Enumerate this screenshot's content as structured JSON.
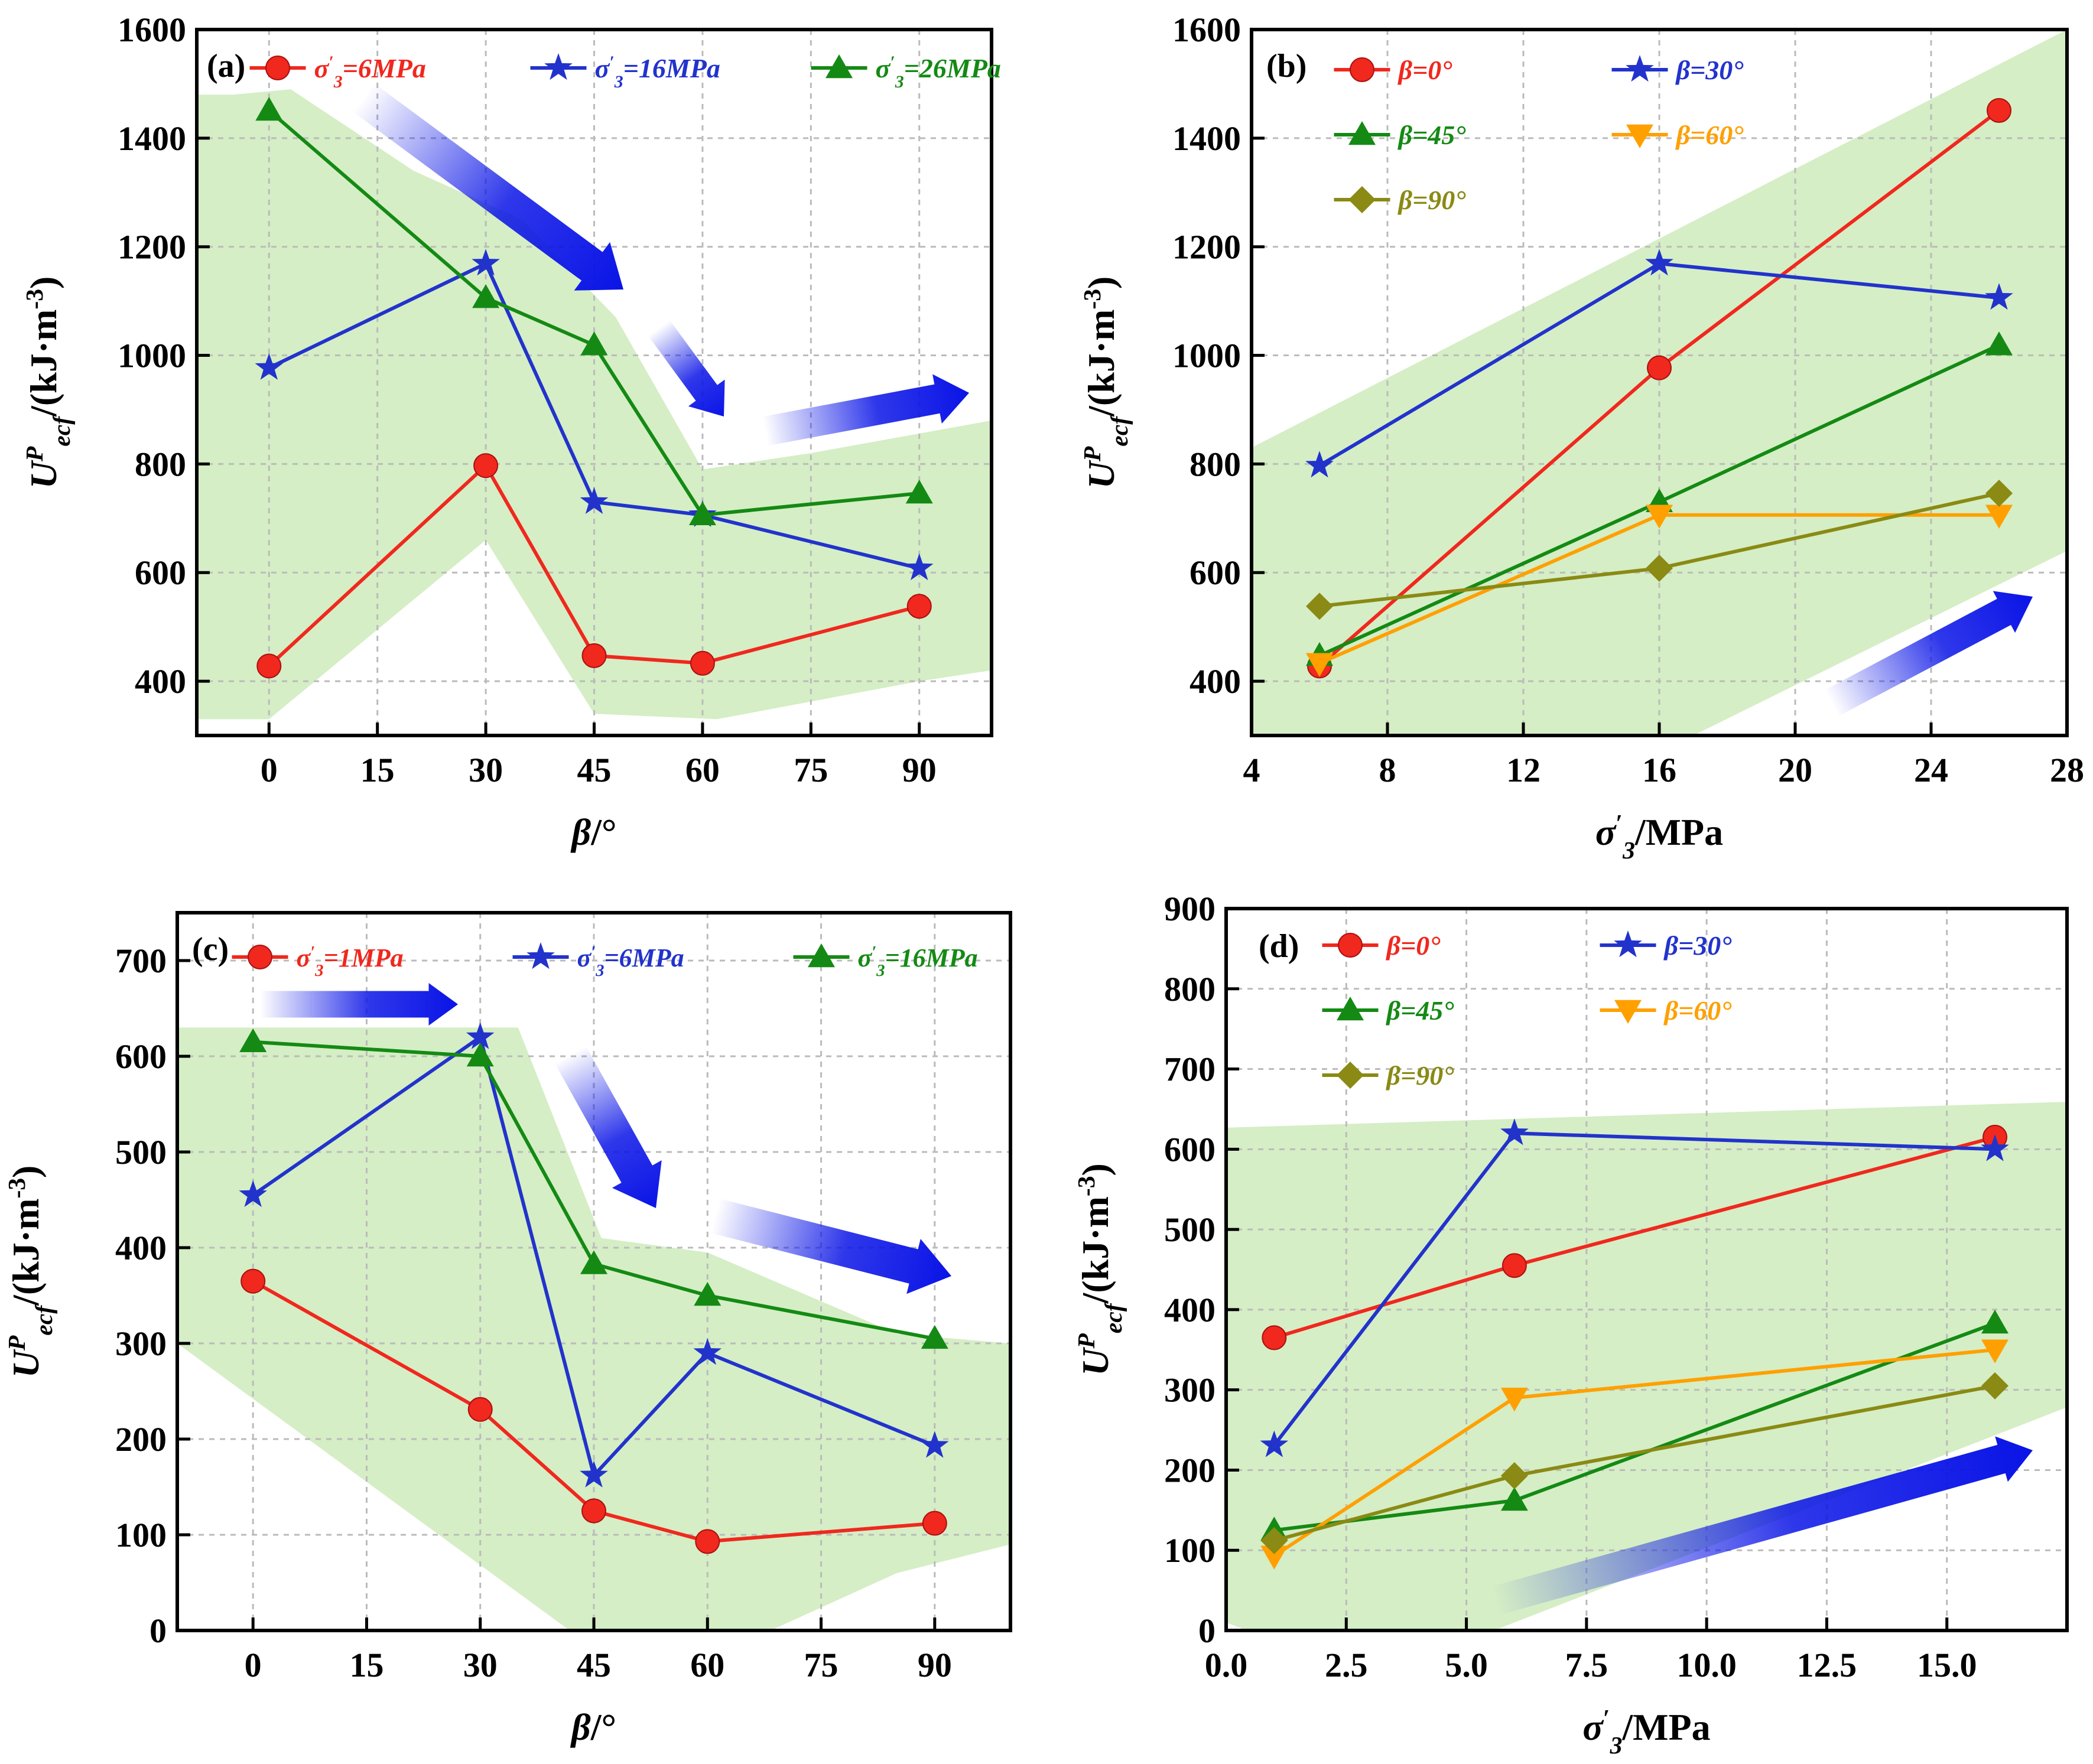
{
  "figure": {
    "panels": [
      {
        "id": "a",
        "tag": "(a)",
        "xlabel": {
          "main": "β",
          "unit": "/°"
        },
        "ylabel": {
          "main": "U",
          "sup": "P",
          "sub": "ecf",
          "unit": "/(kJ·m",
          "unitSup": "-3",
          "close": ")"
        }
      },
      {
        "id": "b",
        "tag": "(b)",
        "xlabel": {
          "main": "σ",
          "sub": "3",
          "prime": "′",
          "unit": "/MPa"
        },
        "ylabel": {
          "main": "U",
          "sup": "P",
          "sub": "ecf",
          "unit": "/(kJ·m",
          "unitSup": "-3",
          "close": ")"
        }
      },
      {
        "id": "c",
        "tag": "(c)",
        "xlabel": {
          "main": "β",
          "unit": "/°"
        },
        "ylabel": {
          "main": "U",
          "sup": "P",
          "sub": "ecf",
          "unit": "/(kJ·m",
          "unitSup": "-3",
          "close": ")"
        }
      },
      {
        "id": "d",
        "tag": "(d)",
        "xlabel": {
          "main": "σ",
          "sub": "3",
          "prime": "′",
          "unit": "/MPa"
        },
        "ylabel": {
          "main": "U",
          "sup": "P",
          "sub": "ecf",
          "unit": "/(kJ·m",
          "unitSup": "-3",
          "close": ")"
        }
      }
    ]
  },
  "colors": {
    "red": "#f0281e",
    "blue": "#2233cc",
    "green": "#148a14",
    "orange": "#ffa000",
    "olive": "#8a8a14",
    "band": "#d5eec5",
    "arrow": "#0a14e6",
    "grid": "#bbbbbb"
  },
  "chart_data": [
    {
      "panel": "a",
      "type": "line",
      "xlim": [
        -10,
        100
      ],
      "ylim": [
        300,
        1600
      ],
      "xticks": [
        "0",
        "15",
        "30",
        "45",
        "60",
        "75",
        "90"
      ],
      "yticks": [
        "400",
        "600",
        "800",
        "1000",
        "1200",
        "1400",
        "1600"
      ],
      "grid": true,
      "legend_position": "top",
      "series": [
        {
          "name": "σ′3=6MPa",
          "name_parts": [
            "σ",
            "′",
            "3",
            "=6MPa"
          ],
          "color": "red",
          "marker": "circle",
          "x": [
            0,
            30,
            45,
            60,
            90
          ],
          "y": [
            428,
            797,
            447,
            433,
            538
          ]
        },
        {
          "name": "σ′3=16MPa",
          "name_parts": [
            "σ",
            "′",
            "3",
            "=16MPa"
          ],
          "color": "blue",
          "marker": "star",
          "x": [
            0,
            30,
            45,
            60,
            90
          ],
          "y": [
            977,
            1169,
            730,
            706,
            608
          ]
        },
        {
          "name": "σ′3=26MPa",
          "name_parts": [
            "σ",
            "′",
            "3",
            "=26MPa"
          ],
          "color": "green",
          "marker": "triangle",
          "x": [
            0,
            30,
            45,
            60,
            90
          ],
          "y": [
            1451,
            1106,
            1019,
            706,
            746
          ]
        }
      ]
    },
    {
      "panel": "b",
      "type": "line",
      "xlim": [
        4,
        28
      ],
      "ylim": [
        300,
        1600
      ],
      "xticks": [
        "4",
        "8",
        "12",
        "16",
        "20",
        "24",
        "28"
      ],
      "yticks": [
        "400",
        "600",
        "800",
        "1000",
        "1200",
        "1400",
        "1600"
      ],
      "grid": true,
      "legend_position": "top-left",
      "series": [
        {
          "name": "β=0°",
          "name_parts": [
            "β",
            "=0°"
          ],
          "color": "red",
          "marker": "circle",
          "x": [
            6,
            16,
            26
          ],
          "y": [
            428,
            977,
            1451
          ]
        },
        {
          "name": "β=30°",
          "name_parts": [
            "β",
            "=30°"
          ],
          "color": "blue",
          "marker": "star",
          "x": [
            6,
            16,
            26
          ],
          "y": [
            797,
            1169,
            1106
          ]
        },
        {
          "name": "β=45°",
          "name_parts": [
            "β",
            "=45°"
          ],
          "color": "green",
          "marker": "triangle",
          "x": [
            6,
            16,
            26
          ],
          "y": [
            447,
            730,
            1019
          ]
        },
        {
          "name": "β=60°",
          "name_parts": [
            "β",
            "=60°"
          ],
          "color": "orange",
          "marker": "triangle-down",
          "x": [
            6,
            16,
            26
          ],
          "y": [
            433,
            706,
            706
          ]
        },
        {
          "name": "β=90°",
          "name_parts": [
            "β",
            "=90°"
          ],
          "color": "olive",
          "marker": "diamond",
          "x": [
            6,
            16,
            26
          ],
          "y": [
            538,
            608,
            746
          ]
        }
      ]
    },
    {
      "panel": "c",
      "type": "line",
      "xlim": [
        -10,
        100
      ],
      "ylim": [
        0,
        750
      ],
      "xticks": [
        "0",
        "15",
        "30",
        "45",
        "60",
        "75",
        "90"
      ],
      "yticks": [
        "0",
        "100",
        "200",
        "300",
        "400",
        "500",
        "600",
        "700"
      ],
      "grid": true,
      "legend_position": "top",
      "series": [
        {
          "name": "σ′3=1MPa",
          "name_parts": [
            "σ",
            "′",
            "3",
            "=1MPa"
          ],
          "color": "red",
          "marker": "circle",
          "x": [
            0,
            30,
            45,
            60,
            90
          ],
          "y": [
            365,
            231,
            125,
            93,
            112
          ]
        },
        {
          "name": "σ′3=6MPa",
          "name_parts": [
            "σ",
            "′",
            "3",
            "=6MPa"
          ],
          "color": "blue",
          "marker": "star",
          "x": [
            0,
            30,
            45,
            60,
            90
          ],
          "y": [
            455,
            620,
            162,
            290,
            193
          ]
        },
        {
          "name": "σ′3=16MPa",
          "name_parts": [
            "σ",
            "′",
            "3",
            "=16MPa"
          ],
          "color": "green",
          "marker": "triangle",
          "x": [
            0,
            30,
            45,
            60,
            90
          ],
          "y": [
            615,
            600,
            383,
            350,
            305
          ]
        }
      ]
    },
    {
      "panel": "d",
      "type": "line",
      "xlim": [
        0,
        17.5
      ],
      "ylim": [
        0,
        900
      ],
      "xticks": [
        "0.0",
        "2.5",
        "5.0",
        "7.5",
        "10.0",
        "12.5",
        "15.0"
      ],
      "yticks": [
        "0",
        "100",
        "200",
        "300",
        "400",
        "500",
        "600",
        "700",
        "800",
        "900"
      ],
      "grid": true,
      "legend_position": "top-left",
      "series": [
        {
          "name": "β=0°",
          "name_parts": [
            "β",
            "=0°"
          ],
          "color": "red",
          "marker": "circle",
          "x": [
            1,
            6,
            16
          ],
          "y": [
            365,
            455,
            615
          ]
        },
        {
          "name": "β=30°",
          "name_parts": [
            "β",
            "=30°"
          ],
          "color": "blue",
          "marker": "star",
          "x": [
            1,
            6,
            16
          ],
          "y": [
            231,
            620,
            600
          ]
        },
        {
          "name": "β=45°",
          "name_parts": [
            "β",
            "=45°"
          ],
          "color": "green",
          "marker": "triangle",
          "x": [
            1,
            6,
            16
          ],
          "y": [
            125,
            162,
            383
          ]
        },
        {
          "name": "β=60°",
          "name_parts": [
            "β",
            "=60°"
          ],
          "color": "orange",
          "marker": "triangle-down",
          "x": [
            1,
            6,
            16
          ],
          "y": [
            93,
            290,
            350
          ]
        },
        {
          "name": "β=90°",
          "name_parts": [
            "β",
            "=90°"
          ],
          "color": "olive",
          "marker": "diamond",
          "x": [
            1,
            6,
            16
          ],
          "y": [
            112,
            193,
            305
          ]
        }
      ]
    }
  ]
}
